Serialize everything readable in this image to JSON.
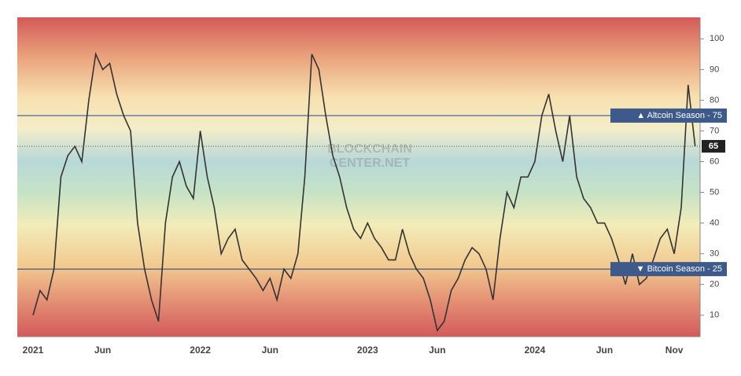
{
  "chart_data": {
    "type": "line",
    "watermark": [
      "BLOCKCHAIN",
      "CENTER.NET"
    ],
    "categories": [
      "2021",
      null,
      null,
      null,
      null,
      null,
      null,
      null,
      null,
      null,
      "Jun",
      null,
      null,
      null,
      null,
      null,
      null,
      null,
      null,
      null,
      null,
      null,
      null,
      null,
      "2022",
      null,
      null,
      null,
      null,
      null,
      null,
      null,
      null,
      null,
      "Jun",
      null,
      null,
      null,
      null,
      null,
      null,
      null,
      null,
      null,
      null,
      null,
      null,
      null,
      "2023",
      null,
      null,
      null,
      null,
      null,
      null,
      null,
      null,
      null,
      "Jun",
      null,
      null,
      null,
      null,
      null,
      null,
      null,
      null,
      null,
      null,
      null,
      null,
      null,
      "2024",
      null,
      null,
      null,
      null,
      null,
      null,
      null,
      null,
      null,
      "Jun",
      null,
      null,
      null,
      null,
      null,
      null,
      null,
      null,
      null,
      "Nov",
      null,
      null,
      null
    ],
    "series": [
      {
        "color": "#333333",
        "values": [
          10,
          18,
          15,
          25,
          55,
          62,
          65,
          60,
          80,
          95,
          90,
          92,
          82,
          75,
          70,
          40,
          25,
          15,
          8,
          40,
          55,
          60,
          52,
          48,
          70,
          55,
          45,
          30,
          35,
          38,
          28,
          25,
          22,
          18,
          22,
          15,
          25,
          22,
          30,
          55,
          95,
          90,
          75,
          62,
          55,
          45,
          38,
          35,
          40,
          35,
          32,
          28,
          28,
          38,
          30,
          25,
          22,
          15,
          5,
          8,
          18,
          22,
          28,
          32,
          30,
          25,
          15,
          35,
          50,
          45,
          55,
          55,
          60,
          75,
          82,
          70,
          60,
          75,
          55,
          48,
          45,
          40,
          40,
          35,
          28,
          20,
          30,
          20,
          22,
          28,
          35,
          38,
          30,
          45,
          85,
          65
        ]
      }
    ],
    "ylim": [
      3,
      107
    ],
    "yticks": [
      10,
      20,
      30,
      40,
      50,
      60,
      70,
      80,
      90,
      100
    ],
    "hlines": [
      {
        "value": 75,
        "label": "▲ Altcoin Season - 75"
      },
      {
        "value": 25,
        "label": "▼ Bitcoin Season - 25"
      }
    ]
  }
}
